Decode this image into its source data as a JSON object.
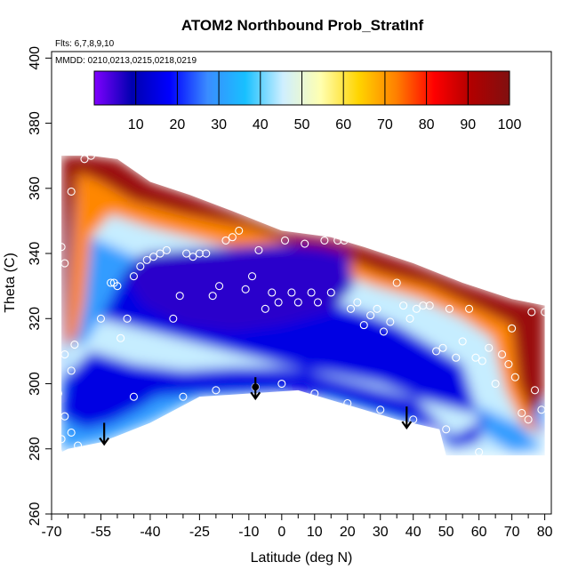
{
  "chart_data": {
    "type": "heatmap",
    "title": "ATOM2 Northbound Prob_StratInf",
    "annotations": {
      "flights": "Flts: 6,7,8,9,10",
      "dates": "MMDD: 0210,0213,0215,0218,0219"
    },
    "xlabel": "Latitude (deg N)",
    "ylabel": "Theta (C)",
    "xlim": [
      -70,
      82
    ],
    "ylim": [
      260,
      402
    ],
    "xticks_labeled": [
      -70,
      -55,
      -40,
      -25,
      -10,
      0,
      10,
      20,
      30,
      40,
      50,
      60,
      70,
      80
    ],
    "xticks_minor_step": 5,
    "yticks": [
      260,
      280,
      300,
      320,
      340,
      360,
      380,
      400
    ],
    "colorbar": {
      "range": [
        0,
        100
      ],
      "ticks": [
        10,
        20,
        30,
        40,
        50,
        60,
        70,
        80,
        90,
        100
      ],
      "colors": [
        "#8000ff",
        "#0000b0",
        "#0000ff",
        "#3a8cff",
        "#18c0ff",
        "#cfefff",
        "#ffffb0",
        "#ffd400",
        "#ff8000",
        "#ff0000",
        "#b00000",
        "#801010"
      ]
    },
    "domain_top": [
      [
        -67,
        370
      ],
      [
        -58,
        370
      ],
      [
        -50,
        369
      ],
      [
        -40,
        362
      ],
      [
        -28,
        358
      ],
      [
        -15,
        353
      ],
      [
        0,
        347
      ],
      [
        15,
        345
      ],
      [
        25,
        342
      ],
      [
        40,
        337
      ],
      [
        55,
        331
      ],
      [
        70,
        326
      ],
      [
        80,
        324
      ]
    ],
    "domain_bottom": [
      [
        80,
        278
      ],
      [
        50,
        278
      ],
      [
        48,
        286
      ],
      [
        35,
        289
      ],
      [
        15,
        295
      ],
      [
        5,
        298
      ],
      [
        -25,
        296
      ],
      [
        -40,
        288
      ],
      [
        -55,
        282
      ],
      [
        -65,
        280
      ],
      [
        -67,
        279
      ]
    ],
    "field_regions": [
      {
        "value": 95,
        "poly": [
          [
            -67,
            370
          ],
          [
            -58,
            370
          ],
          [
            -50,
            369
          ],
          [
            -40,
            362
          ],
          [
            -28,
            358
          ],
          [
            -15,
            353
          ],
          [
            0,
            347
          ],
          [
            15,
            345
          ],
          [
            25,
            342
          ],
          [
            40,
            337
          ],
          [
            55,
            331
          ],
          [
            70,
            326
          ],
          [
            80,
            324
          ],
          [
            80,
            296
          ],
          [
            76,
            290
          ],
          [
            72,
            300
          ],
          [
            70,
            318
          ],
          [
            62,
            322
          ],
          [
            45,
            330
          ],
          [
            30,
            334
          ],
          [
            20,
            338
          ],
          [
            5,
            342
          ],
          [
            -10,
            348
          ],
          [
            -30,
            352
          ],
          [
            -45,
            356
          ],
          [
            -55,
            362
          ],
          [
            -62,
            365
          ],
          [
            -64,
            345
          ],
          [
            -66,
            320
          ],
          [
            -67,
            310
          ]
        ]
      },
      {
        "value": 72,
        "poly": [
          [
            -62,
            365
          ],
          [
            -55,
            362
          ],
          [
            -45,
            356
          ],
          [
            -30,
            352
          ],
          [
            -10,
            348
          ],
          [
            5,
            342
          ],
          [
            20,
            338
          ],
          [
            30,
            334
          ],
          [
            45,
            330
          ],
          [
            62,
            322
          ],
          [
            70,
            318
          ],
          [
            72,
            300
          ],
          [
            76,
            290
          ],
          [
            79,
            284
          ],
          [
            74,
            286
          ],
          [
            68,
            298
          ],
          [
            64,
            314
          ],
          [
            55,
            320
          ],
          [
            42,
            326
          ],
          [
            28,
            330
          ],
          [
            15,
            335
          ],
          [
            0,
            339
          ],
          [
            -20,
            343
          ],
          [
            -40,
            348
          ],
          [
            -52,
            352
          ],
          [
            -58,
            345
          ],
          [
            -60,
            325
          ],
          [
            -62,
            315
          ],
          [
            -66,
            310
          ]
        ]
      },
      {
        "value": 45,
        "poly": [
          [
            -58,
            345
          ],
          [
            -52,
            352
          ],
          [
            -40,
            348
          ],
          [
            -20,
            343
          ],
          [
            0,
            339
          ],
          [
            15,
            335
          ],
          [
            28,
            330
          ],
          [
            42,
            326
          ],
          [
            55,
            320
          ],
          [
            64,
            314
          ],
          [
            68,
            298
          ],
          [
            74,
            286
          ],
          [
            79,
            280
          ],
          [
            70,
            279
          ],
          [
            62,
            284
          ],
          [
            58,
            296
          ],
          [
            55,
            306
          ],
          [
            45,
            312
          ],
          [
            35,
            318
          ],
          [
            25,
            322
          ],
          [
            10,
            326
          ],
          [
            -5,
            330
          ],
          [
            -20,
            334
          ],
          [
            -35,
            336
          ],
          [
            -48,
            334
          ],
          [
            -55,
            320
          ],
          [
            -60,
            312
          ],
          [
            -66,
            312
          ],
          [
            -66,
            296
          ],
          [
            -58,
            291
          ],
          [
            -48,
            294
          ],
          [
            -40,
            296
          ],
          [
            -35,
            300
          ],
          [
            -20,
            300
          ],
          [
            0,
            300
          ],
          [
            20,
            296
          ],
          [
            35,
            292
          ],
          [
            45,
            288
          ],
          [
            50,
            284
          ],
          [
            50,
            278
          ],
          [
            80,
            278
          ],
          [
            80,
            284
          ]
        ]
      },
      {
        "value": 15,
        "poly": [
          [
            -55,
            320
          ],
          [
            -48,
            334
          ],
          [
            -35,
            336
          ],
          [
            -20,
            334
          ],
          [
            -5,
            330
          ],
          [
            10,
            326
          ],
          [
            25,
            322
          ],
          [
            35,
            318
          ],
          [
            45,
            312
          ],
          [
            55,
            306
          ],
          [
            58,
            296
          ],
          [
            60,
            288
          ],
          [
            52,
            284
          ],
          [
            48,
            288
          ],
          [
            40,
            296
          ],
          [
            30,
            300
          ],
          [
            15,
            303
          ],
          [
            0,
            305
          ],
          [
            -15,
            305
          ],
          [
            -30,
            304
          ],
          [
            -45,
            306
          ],
          [
            -58,
            310
          ],
          [
            -66,
            302
          ],
          [
            -67,
            290
          ],
          [
            -60,
            286
          ],
          [
            -52,
            288
          ],
          [
            -44,
            292
          ],
          [
            -38,
            296
          ],
          [
            -25,
            297
          ],
          [
            0,
            298
          ],
          [
            15,
            296
          ],
          [
            35,
            290
          ],
          [
            48,
            286
          ],
          [
            52,
            280
          ],
          [
            60,
            282
          ],
          [
            62,
            290
          ]
        ]
      },
      {
        "value": 6,
        "poly": [
          [
            -48,
            334
          ],
          [
            -42,
            340
          ],
          [
            -30,
            341
          ],
          [
            -15,
            342
          ],
          [
            0,
            343
          ],
          [
            12,
            342
          ],
          [
            20,
            340
          ],
          [
            22,
            330
          ],
          [
            15,
            322
          ],
          [
            0,
            318
          ],
          [
            -15,
            316
          ],
          [
            -30,
            318
          ],
          [
            -42,
            324
          ]
        ]
      }
    ],
    "obs_points": [
      [
        -67,
        342
      ],
      [
        -66,
        337
      ],
      [
        -64,
        359
      ],
      [
        -60,
        369
      ],
      [
        -58,
        370
      ],
      [
        -55,
        320
      ],
      [
        -52,
        331
      ],
      [
        -51,
        331
      ],
      [
        -50,
        330
      ],
      [
        -49,
        314
      ],
      [
        -47,
        320
      ],
      [
        -45,
        333
      ],
      [
        -43,
        336
      ],
      [
        -41,
        338
      ],
      [
        -39,
        339
      ],
      [
        -37,
        340
      ],
      [
        -35,
        341
      ],
      [
        -33,
        320
      ],
      [
        -31,
        327
      ],
      [
        -29,
        340
      ],
      [
        -27,
        339
      ],
      [
        -25,
        340
      ],
      [
        -23,
        340
      ],
      [
        -21,
        327
      ],
      [
        -19,
        330
      ],
      [
        -17,
        344
      ],
      [
        -15,
        345
      ],
      [
        -13,
        347
      ],
      [
        -11,
        329
      ],
      [
        -9,
        333
      ],
      [
        -7,
        341
      ],
      [
        -5,
        323
      ],
      [
        -3,
        328
      ],
      [
        -1,
        325
      ],
      [
        1,
        344
      ],
      [
        3,
        328
      ],
      [
        5,
        325
      ],
      [
        7,
        343
      ],
      [
        9,
        328
      ],
      [
        11,
        325
      ],
      [
        13,
        344
      ],
      [
        15,
        328
      ],
      [
        17,
        344
      ],
      [
        19,
        344
      ],
      [
        21,
        323
      ],
      [
        23,
        325
      ],
      [
        25,
        318
      ],
      [
        27,
        321
      ],
      [
        29,
        323
      ],
      [
        31,
        316
      ],
      [
        33,
        319
      ],
      [
        35,
        331
      ],
      [
        37,
        324
      ],
      [
        39,
        320
      ],
      [
        41,
        323
      ],
      [
        43,
        324
      ],
      [
        45,
        324
      ],
      [
        47,
        310
      ],
      [
        49,
        311
      ],
      [
        51,
        323
      ],
      [
        53,
        308
      ],
      [
        55,
        313
      ],
      [
        57,
        323
      ],
      [
        59,
        308
      ],
      [
        61,
        307
      ],
      [
        63,
        311
      ],
      [
        65,
        300
      ],
      [
        67,
        309
      ],
      [
        69,
        306
      ],
      [
        71,
        302
      ],
      [
        73,
        291
      ],
      [
        75,
        289
      ],
      [
        77,
        298
      ],
      [
        79,
        292
      ],
      [
        80,
        322
      ],
      [
        76,
        322
      ],
      [
        70,
        317
      ],
      [
        -68,
        297
      ],
      [
        -66,
        290
      ],
      [
        -64,
        285
      ],
      [
        -62,
        281
      ],
      [
        -45,
        296
      ],
      [
        -30,
        296
      ],
      [
        -20,
        298
      ],
      [
        -8,
        299
      ],
      [
        0,
        300
      ],
      [
        10,
        297
      ],
      [
        20,
        294
      ],
      [
        30,
        292
      ],
      [
        40,
        289
      ],
      [
        50,
        286
      ],
      [
        60,
        279
      ],
      [
        -68,
        279
      ],
      [
        -67,
        283
      ],
      [
        -63,
        312
      ],
      [
        -66,
        309
      ],
      [
        -64,
        304
      ]
    ],
    "arrows": [
      [
        -54,
        288
      ],
      [
        -8,
        302
      ],
      [
        38,
        293
      ]
    ]
  }
}
